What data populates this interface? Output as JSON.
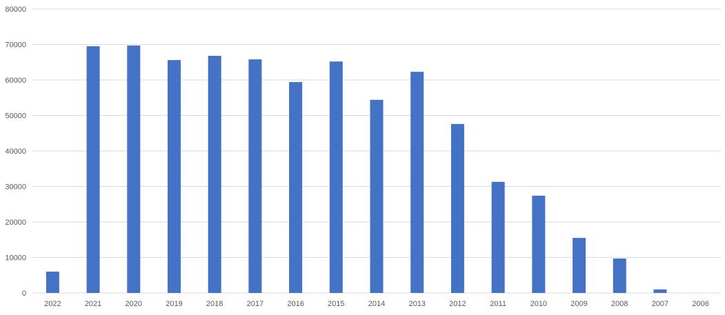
{
  "chart_data": {
    "type": "bar",
    "title": "",
    "xlabel": "",
    "ylabel": "",
    "categories": [
      "2022",
      "2021",
      "2020",
      "2019",
      "2018",
      "2017",
      "2016",
      "2015",
      "2014",
      "2013",
      "2012",
      "2011",
      "2010",
      "2009",
      "2008",
      "2007",
      "2006"
    ],
    "values": [
      6000,
      69500,
      69700,
      65600,
      66800,
      65800,
      59400,
      65200,
      54400,
      62300,
      47600,
      31300,
      27400,
      15500,
      9700,
      1000,
      0
    ],
    "ylim": [
      0,
      80000
    ],
    "yticks": [
      0,
      10000,
      20000,
      30000,
      40000,
      50000,
      60000,
      70000,
      80000
    ],
    "grid": true,
    "legend": "none",
    "colors": {
      "bar": "#4472C4",
      "grid": "#D9D9D9",
      "text": "#595959"
    }
  }
}
